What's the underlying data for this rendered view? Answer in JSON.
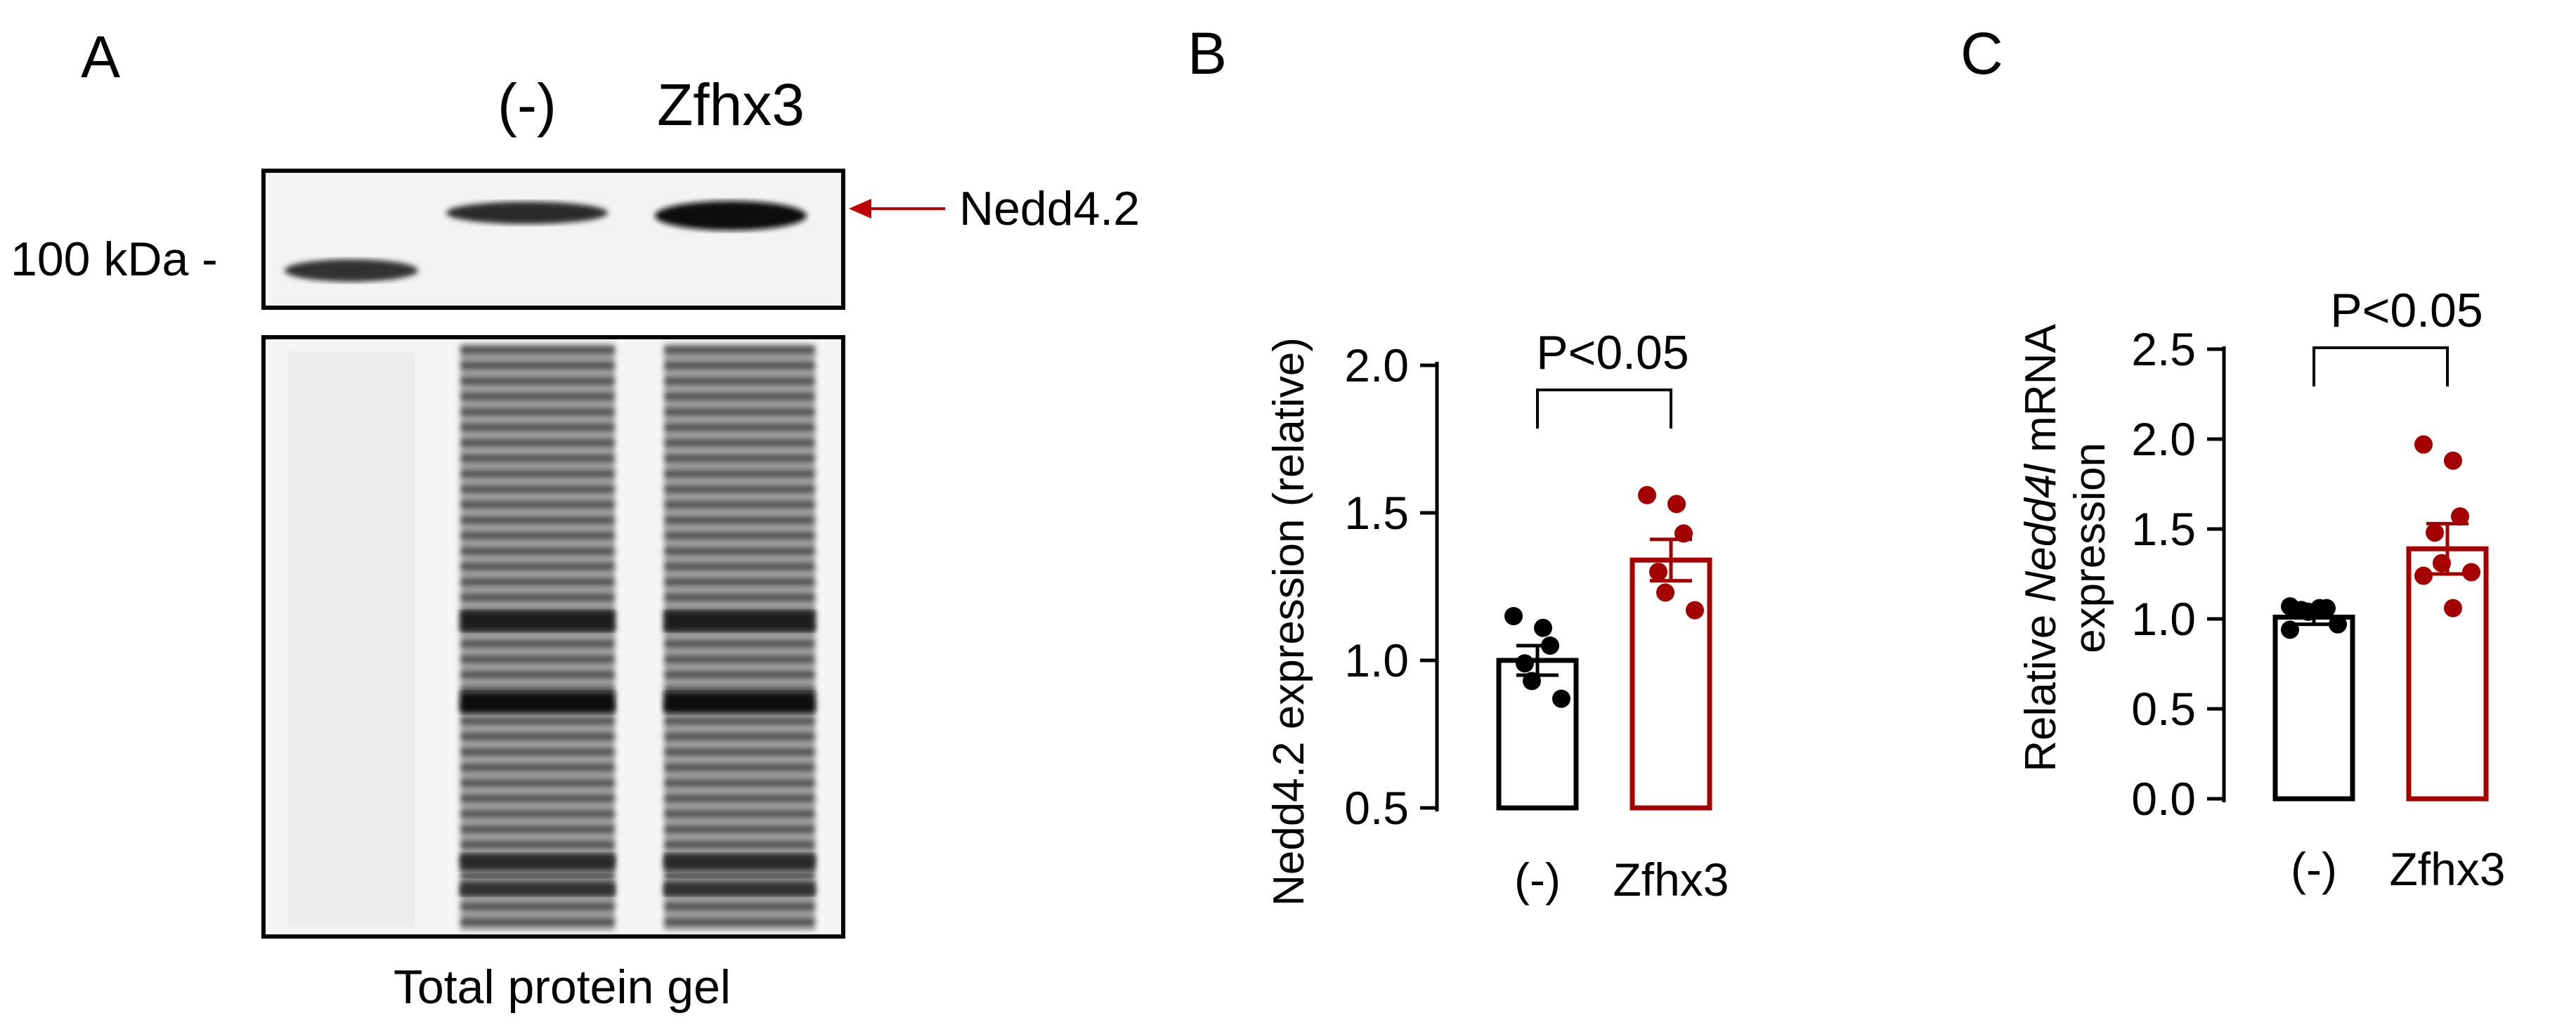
{
  "panel_a": {
    "letter": "A",
    "lanes": [
      "(-)",
      "Zfhx3"
    ],
    "marker": "100 kDa -",
    "band_label": "Nedd4.2",
    "gel_caption": "Total protein gel",
    "colors": {
      "arrow": "#c00000"
    }
  },
  "chart_data": [
    {
      "type": "bar",
      "panel": "B",
      "categories": [
        "(-)",
        "Zfhx3"
      ],
      "values": [
        1.0,
        1.34
      ],
      "errors": [
        0.05,
        0.07
      ],
      "points": [
        [
          1.15,
          1.11,
          1.05,
          0.99,
          0.93,
          0.87
        ],
        [
          1.56,
          1.53,
          1.43,
          1.3,
          1.23,
          1.17
        ]
      ],
      "ylabel": "Nedd4.2 expression (relative)",
      "ylim": [
        0.5,
        2.0
      ],
      "yticks": [
        "0.5",
        "1.0",
        "1.5",
        "2.0"
      ],
      "significance": "P<0.05",
      "colors": [
        "#000000",
        "#a50000"
      ]
    },
    {
      "type": "bar",
      "panel": "C",
      "categories": [
        "(-)",
        "Zfhx3"
      ],
      "values": [
        1.01,
        1.39
      ],
      "errors": [
        0.04,
        0.14
      ],
      "points": [
        [
          1.07,
          1.06,
          1.06,
          1.05,
          1.04,
          0.97,
          0.94
        ],
        [
          1.97,
          1.88,
          1.57,
          1.48,
          1.31,
          1.26,
          1.24,
          1.06
        ]
      ],
      "ylabel_parts": [
        "Relative ",
        "Nedd4l",
        " mRNA"
      ],
      "ylabel_line2": "expression",
      "ylim": [
        0.0,
        2.5
      ],
      "yticks": [
        "0.0",
        "0.5",
        "1.0",
        "1.5",
        "2.0",
        "2.5"
      ],
      "significance": "P<0.05",
      "colors": [
        "#000000",
        "#a50000"
      ]
    }
  ]
}
